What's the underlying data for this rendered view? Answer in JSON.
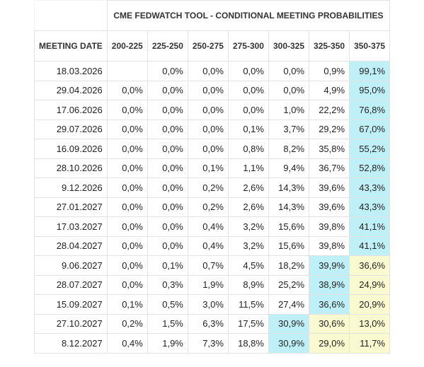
{
  "header": {
    "title": "CME FEDWATCH TOOL - CONDITIONAL MEETING PROBABILITIES"
  },
  "table": {
    "columns": [
      "MEETING DATE",
      "200-225",
      "225-250",
      "250-275",
      "275-300",
      "300-325",
      "325-350",
      "350-375"
    ],
    "rows": [
      [
        "18.03.2026",
        null,
        "0,0%",
        "0,0%",
        "0,0%",
        "0,0%",
        "0,9%",
        "99,1%"
      ],
      [
        "29.04.2026",
        "0,0%",
        "0,0%",
        "0,0%",
        "0,0%",
        "0,0%",
        "4,9%",
        "95,0%"
      ],
      [
        "17.06.2026",
        "0,0%",
        "0,0%",
        "0,0%",
        "0,0%",
        "1,0%",
        "22,2%",
        "76,8%"
      ],
      [
        "29.07.2026",
        "0,0%",
        "0,0%",
        "0,0%",
        "0,1%",
        "3,7%",
        "29,2%",
        "67,0%"
      ],
      [
        "16.09.2026",
        "0,0%",
        "0,0%",
        "0,0%",
        "0,8%",
        "8,2%",
        "35,8%",
        "55,2%"
      ],
      [
        "28.10.2026",
        "0,0%",
        "0,0%",
        "0,1%",
        "1,1%",
        "9,4%",
        "36,7%",
        "52,8%"
      ],
      [
        "9.12.2026",
        "0,0%",
        "0,0%",
        "0,2%",
        "2,6%",
        "14,3%",
        "39,6%",
        "43,3%"
      ],
      [
        "27.01.2027",
        "0,0%",
        "0,0%",
        "0,2%",
        "2,6%",
        "14,3%",
        "39,6%",
        "43,3%"
      ],
      [
        "17.03.2027",
        "0,0%",
        "0,0%",
        "0,4%",
        "3,2%",
        "15,6%",
        "39,8%",
        "41,1%"
      ],
      [
        "28.04.2027",
        "0,0%",
        "0,0%",
        "0,4%",
        "3,2%",
        "15,6%",
        "39,8%",
        "41,1%"
      ],
      [
        "9.06.2027",
        "0,0%",
        "0,1%",
        "0,7%",
        "4,5%",
        "18,2%",
        "39,9%",
        "36,6%"
      ],
      [
        "28.07.2027",
        "0,0%",
        "0,3%",
        "1,9%",
        "8,9%",
        "25,2%",
        "38,9%",
        "24,9%"
      ],
      [
        "15.09.2027",
        "0,1%",
        "0,5%",
        "3,0%",
        "11,5%",
        "27,4%",
        "36,6%",
        "20,9%"
      ],
      [
        "27.10.2027",
        "0,2%",
        "1,5%",
        "6,3%",
        "17,5%",
        "30,9%",
        "30,6%",
        "13,0%"
      ],
      [
        "8.12.2027",
        "0,4%",
        "1,9%",
        "7,3%",
        "18,8%",
        "30,9%",
        "29,0%",
        "11,7%"
      ]
    ]
  }
}
